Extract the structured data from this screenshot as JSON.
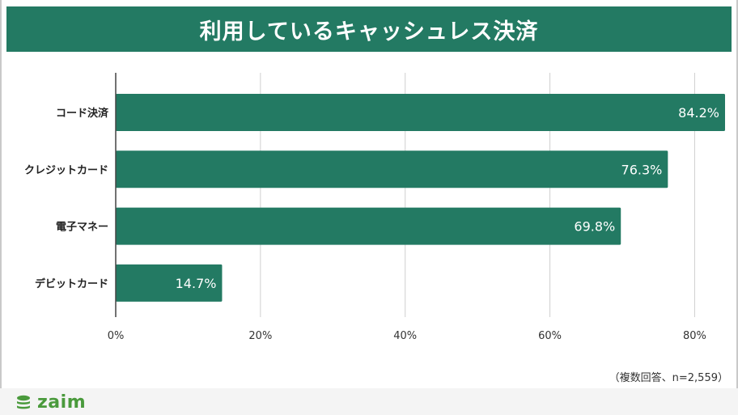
{
  "title": "利用しているキャッシュレス決済",
  "note": "（複数回答、n=2,559）",
  "brand": {
    "name": "zaim",
    "color": "#4a9a3c",
    "icon": "coin-stack-icon"
  },
  "colors": {
    "bar": "#237a63",
    "header": "#237a63",
    "grid": "#cfcfcf",
    "axis": "#444444"
  },
  "chart_data": {
    "type": "bar",
    "orientation": "horizontal",
    "categories": [
      "コード決済",
      "クレジットカード",
      "電子マネー",
      "デビットカード"
    ],
    "values": [
      84.2,
      76.3,
      69.8,
      14.7
    ],
    "data_labels": [
      "84.2%",
      "76.3%",
      "69.8%",
      "14.7%"
    ],
    "x_ticks": [
      0,
      20,
      40,
      60,
      80
    ],
    "x_tick_labels": [
      "0%",
      "20%",
      "40%",
      "60%",
      "80%"
    ],
    "xlim": [
      0,
      84.2
    ],
    "grid": true,
    "title": "利用しているキャッシュレス決済"
  }
}
